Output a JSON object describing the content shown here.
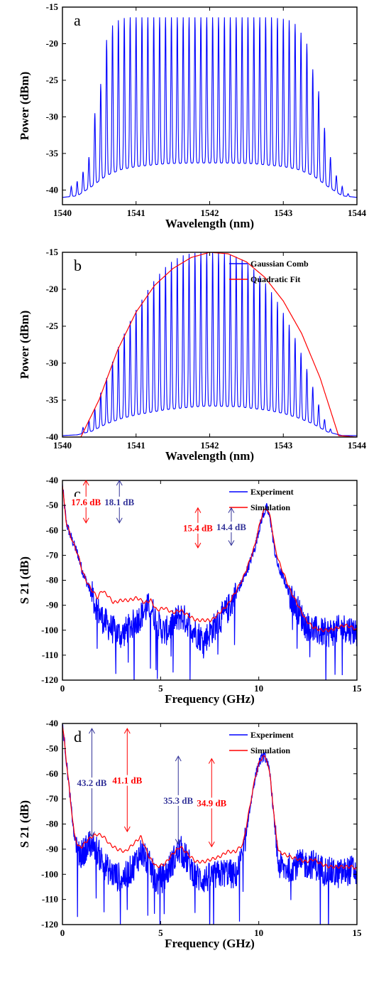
{
  "chart_data": [
    {
      "panel": "a",
      "type": "line",
      "xlabel": "Wavelength (nm)",
      "ylabel": "Power (dBm)",
      "xlim": [
        1540,
        1544
      ],
      "ylim": [
        -42,
        -15
      ],
      "xticks": [
        "1540",
        "1541",
        "1542",
        "1543",
        "1544"
      ],
      "yticks": [
        "-15",
        "-20",
        "-25",
        "-30",
        "-35",
        "-40"
      ],
      "legend": [],
      "series": [
        {
          "color": "#0000ff",
          "kind": "comb",
          "line_spacing_nm": 0.08,
          "peaks": {
            "x": [
              1540.12,
              1540.2,
              1540.28,
              1540.36,
              1540.44,
              1540.52,
              1540.6,
              1540.68,
              1540.76,
              1540.84,
              1540.92,
              1541.0,
              1541.08,
              1541.16,
              1541.24,
              1541.32,
              1541.4,
              1541.48,
              1541.56,
              1541.64,
              1541.72,
              1541.8,
              1541.88,
              1541.96,
              1542.04,
              1542.12,
              1542.2,
              1542.28,
              1542.36,
              1542.44,
              1542.52,
              1542.6,
              1542.68,
              1542.76,
              1542.84,
              1542.92,
              1543.0,
              1543.08,
              1543.16,
              1543.24,
              1543.32,
              1543.4,
              1543.48,
              1543.56,
              1543.64,
              1543.72,
              1543.8,
              1543.88
            ],
            "y": [
              -39.5,
              -38.8,
              -37.5,
              -35.5,
              -29.5,
              -25.5,
              -19.5,
              -17.5,
              -16.8,
              -16.5,
              -16.4,
              -16.4,
              -16.4,
              -16.4,
              -16.4,
              -16.4,
              -16.4,
              -16.4,
              -16.4,
              -16.4,
              -16.4,
              -16.4,
              -16.4,
              -16.4,
              -16.4,
              -16.4,
              -16.4,
              -16.4,
              -16.4,
              -16.4,
              -16.4,
              -16.4,
              -16.4,
              -16.4,
              -16.4,
              -16.5,
              -16.6,
              -16.8,
              -17.3,
              -18.5,
              -20.0,
              -23.5,
              -26.5,
              -31.5,
              -35.5,
              -38.0,
              -39.5,
              -40.5
            ]
          },
          "floor": {
            "x": [
              1540.0,
              1540.2,
              1540.4,
              1540.6,
              1540.8,
              1541.0,
              1541.4,
              1541.8,
              1542.2,
              1542.6,
              1543.0,
              1543.2,
              1543.4,
              1543.6,
              1543.8,
              1544.0
            ],
            "y": [
              -41.0,
              -40.8,
              -39.5,
              -38.0,
              -37.2,
              -36.8,
              -36.4,
              -36.3,
              -36.3,
              -36.4,
              -36.8,
              -37.2,
              -38.0,
              -39.5,
              -40.8,
              -41.0
            ]
          }
        }
      ],
      "annotations": []
    },
    {
      "panel": "b",
      "type": "line",
      "xlabel": "Wavelength (nm)",
      "ylabel": "Power (dBm)",
      "xlim": [
        1540,
        1544
      ],
      "ylim": [
        -40,
        -15
      ],
      "xticks": [
        "1540",
        "1541",
        "1542",
        "1543",
        "1544"
      ],
      "yticks": [
        "-15",
        "-20",
        "-25",
        "-30",
        "-35",
        "-40"
      ],
      "legend": [
        {
          "label": "Gaussian Comb",
          "color": "#0000ff"
        },
        {
          "label": "Quadratic Fit",
          "color": "#ff0000"
        }
      ],
      "series": [
        {
          "name": "Gaussian Comb",
          "color": "#0000ff",
          "kind": "comb",
          "line_spacing_nm": 0.08,
          "peaks": {
            "x": [
              1540.2,
              1540.28,
              1540.36,
              1540.44,
              1540.52,
              1540.6,
              1540.68,
              1540.76,
              1540.84,
              1540.92,
              1541.0,
              1541.08,
              1541.16,
              1541.24,
              1541.32,
              1541.4,
              1541.48,
              1541.56,
              1541.64,
              1541.72,
              1541.8,
              1541.88,
              1541.96,
              1542.04,
              1542.12,
              1542.2,
              1542.28,
              1542.36,
              1542.44,
              1542.52,
              1542.6,
              1542.68,
              1542.76,
              1542.84,
              1542.92,
              1543.0,
              1543.08,
              1543.16,
              1543.24,
              1543.32,
              1543.4,
              1543.48,
              1543.56,
              1543.64,
              1543.72
            ],
            "y": [
              -39.7,
              -38.7,
              -37.7,
              -36.2,
              -34.0,
              -32.0,
              -29.8,
              -27.8,
              -26.0,
              -24.3,
              -22.8,
              -21.4,
              -20.1,
              -18.9,
              -17.9,
              -17.0,
              -16.3,
              -15.8,
              -15.4,
              -15.2,
              -15.1,
              -15.0,
              -15.0,
              -15.0,
              -15.0,
              -15.1,
              -15.3,
              -15.6,
              -16.0,
              -16.6,
              -17.3,
              -18.2,
              -19.2,
              -20.4,
              -21.7,
              -23.2,
              -24.8,
              -26.6,
              -28.6,
              -30.8,
              -33.2,
              -35.6,
              -37.6,
              -38.9,
              -39.7
            ]
          },
          "floor": {
            "x": [
              1540.0,
              1540.2,
              1540.4,
              1540.6,
              1540.8,
              1541.0,
              1541.4,
              1541.8,
              1542.0,
              1542.4,
              1542.8,
              1543.0,
              1543.2,
              1543.4,
              1543.6,
              1543.8,
              1544.0
            ],
            "y": [
              -39.8,
              -39.7,
              -39.2,
              -38.2,
              -37.5,
              -37.0,
              -36.3,
              -35.9,
              -35.8,
              -35.9,
              -36.4,
              -36.8,
              -37.4,
              -38.2,
              -39.3,
              -39.8,
              -39.8
            ]
          }
        },
        {
          "name": "Quadratic Fit",
          "color": "#ff0000",
          "kind": "line",
          "x": [
            1540.0,
            1540.25,
            1540.5,
            1540.75,
            1541.0,
            1541.25,
            1541.5,
            1541.75,
            1542.0,
            1542.25,
            1542.5,
            1542.75,
            1543.0,
            1543.25,
            1543.5,
            1543.75,
            1544.0
          ],
          "y": [
            -40.0,
            -40.0,
            -34.9,
            -28.2,
            -23.1,
            -19.5,
            -17.2,
            -15.7,
            -15.0,
            -15.2,
            -16.3,
            -18.4,
            -21.6,
            -26.0,
            -32.0,
            -39.8,
            -40.0
          ]
        }
      ],
      "annotations": []
    },
    {
      "panel": "c",
      "type": "line",
      "xlabel": "Frequency (GHz)",
      "ylabel": "S 21 (dB)",
      "xlim": [
        0,
        15
      ],
      "ylim": [
        -120,
        -40
      ],
      "xticks": [
        "0",
        "5",
        "10",
        "15"
      ],
      "yticks": [
        "-40",
        "-50",
        "-60",
        "-70",
        "-80",
        "-90",
        "-100",
        "-110",
        "-120"
      ],
      "legend": [
        {
          "label": "Experiment",
          "color": "#0000ff"
        },
        {
          "label": "Simulation",
          "color": "#ff0000"
        }
      ],
      "series": [
        {
          "name": "Experiment",
          "color": "#0000ff",
          "kind": "noisy",
          "x": [
            0.0,
            0.1,
            0.2,
            0.4,
            0.6,
            0.8,
            1.0,
            1.2,
            1.5,
            1.8,
            2.0,
            2.3,
            2.6,
            3.0,
            3.4,
            3.8,
            4.2,
            4.5,
            4.8,
            5.2,
            5.6,
            6.0,
            6.4,
            6.8,
            7.2,
            7.6,
            8.0,
            8.4,
            8.8,
            9.2,
            9.5,
            9.8,
            10.0,
            10.2,
            10.4,
            10.6,
            10.8,
            11.0,
            11.3,
            11.6,
            12.0,
            12.4,
            12.8,
            13.2,
            13.6,
            14.0,
            14.4,
            14.8,
            15.0
          ],
          "y": [
            -42,
            -50,
            -57,
            -62,
            -66,
            -70,
            -76,
            -80,
            -86,
            -92,
            -95,
            -98,
            -100,
            -102,
            -99,
            -96,
            -92,
            -90,
            -97,
            -101,
            -98,
            -94,
            -97,
            -101,
            -104,
            -100,
            -96,
            -92,
            -86,
            -80,
            -74,
            -67,
            -60,
            -54,
            -51,
            -56,
            -68,
            -75,
            -80,
            -86,
            -92,
            -98,
            -100,
            -101,
            -101,
            -100,
            -99,
            -100,
            -101
          ]
        },
        {
          "name": "Simulation",
          "color": "#ff0000",
          "kind": "line",
          "x": [
            0.0,
            0.1,
            0.2,
            0.4,
            0.6,
            0.8,
            1.0,
            1.2,
            1.5,
            1.8,
            2.0,
            2.3,
            2.6,
            3.0,
            3.4,
            3.8,
            4.2,
            4.5,
            4.8,
            5.2,
            5.6,
            6.0,
            6.4,
            6.8,
            7.2,
            7.6,
            8.0,
            8.4,
            8.8,
            9.2,
            9.5,
            9.8,
            10.0,
            10.2,
            10.4,
            10.6,
            10.8,
            11.0,
            11.3,
            11.6,
            12.0,
            12.4,
            12.8,
            13.2,
            13.6,
            14.0,
            14.4,
            14.8,
            15.0
          ],
          "y": [
            -42,
            -50,
            -57,
            -62,
            -66,
            -70,
            -76,
            -80,
            -84,
            -87,
            -84,
            -86,
            -89,
            -88,
            -88,
            -87,
            -89,
            -88,
            -92,
            -91,
            -93,
            -92,
            -94,
            -96,
            -96,
            -96,
            -93,
            -90,
            -85,
            -79,
            -73,
            -66,
            -59,
            -53,
            -51,
            -55,
            -66,
            -72,
            -78,
            -84,
            -90,
            -96,
            -99,
            -100,
            -100,
            -99,
            -98,
            -99,
            -100
          ]
        }
      ],
      "annotations": [
        {
          "text": "17.6 dB",
          "color": "#ff0000",
          "x": 1.2,
          "y_top": -40,
          "y_bottom": -57
        },
        {
          "text": "18.1 dB",
          "color": "#333399",
          "x": 2.9,
          "y_top": -40,
          "y_bottom": -57
        },
        {
          "text": "15.4 dB",
          "color": "#ff0000",
          "x": 6.9,
          "y_top": -51,
          "y_bottom": -67
        },
        {
          "text": "14.4 dB",
          "color": "#333399",
          "x": 8.6,
          "y_top": -51,
          "y_bottom": -66
        }
      ]
    },
    {
      "panel": "d",
      "type": "line",
      "xlabel": "Frequency (GHz)",
      "ylabel": "S 21 (dB)",
      "xlim": [
        0,
        15
      ],
      "ylim": [
        -120,
        -40
      ],
      "xticks": [
        "0",
        "5",
        "10",
        "15"
      ],
      "yticks": [
        "-40",
        "-50",
        "-60",
        "-70",
        "-80",
        "-90",
        "-100",
        "-110",
        "-120"
      ],
      "legend": [
        {
          "label": "Experiment",
          "color": "#0000ff"
        },
        {
          "label": "Simulation",
          "color": "#ff0000"
        }
      ],
      "series": [
        {
          "name": "Experiment",
          "color": "#0000ff",
          "kind": "noisy",
          "x": [
            0.0,
            0.1,
            0.2,
            0.4,
            0.6,
            0.8,
            1.0,
            1.2,
            1.5,
            1.8,
            2.1,
            2.4,
            2.8,
            3.2,
            3.6,
            4.0,
            4.4,
            4.8,
            5.2,
            5.6,
            6.0,
            6.4,
            6.8,
            7.2,
            7.6,
            8.0,
            8.4,
            8.8,
            9.2,
            9.5,
            9.8,
            10.0,
            10.2,
            10.4,
            10.6,
            10.8,
            11.0,
            11.3,
            11.6,
            12.0,
            12.4,
            12.8,
            13.2,
            13.6,
            14.0,
            14.4,
            14.8,
            15.0
          ],
          "y": [
            -41,
            -47,
            -55,
            -70,
            -85,
            -92,
            -92,
            -89,
            -88,
            -91,
            -96,
            -99,
            -101,
            -101,
            -97,
            -91,
            -96,
            -103,
            -101,
            -95,
            -90,
            -95,
            -101,
            -102,
            -101,
            -100,
            -99,
            -101,
            -92,
            -76,
            -62,
            -56,
            -53,
            -54,
            -62,
            -80,
            -96,
            -98,
            -97,
            -96,
            -96,
            -96,
            -98,
            -99,
            -100,
            -99,
            -98,
            -100
          ]
        },
        {
          "name": "Simulation",
          "color": "#ff0000",
          "kind": "line",
          "x": [
            0.0,
            0.1,
            0.2,
            0.4,
            0.6,
            0.8,
            1.0,
            1.2,
            1.5,
            1.8,
            2.1,
            2.4,
            2.8,
            3.2,
            3.6,
            4.0,
            4.4,
            4.8,
            5.2,
            5.6,
            6.0,
            6.4,
            6.8,
            7.2,
            7.6,
            8.0,
            8.4,
            8.8,
            9.2,
            9.5,
            9.8,
            10.0,
            10.2,
            10.4,
            10.6,
            10.8,
            11.0,
            11.3,
            11.6,
            12.0,
            12.4,
            12.8,
            13.2,
            13.6,
            14.0,
            14.4,
            14.8,
            15.0
          ],
          "y": [
            -41,
            -47,
            -55,
            -70,
            -84,
            -89,
            -89,
            -87,
            -85,
            -84,
            -85,
            -88,
            -90,
            -91,
            -88,
            -85,
            -93,
            -97,
            -96,
            -92,
            -89,
            -92,
            -95,
            -95,
            -94,
            -93,
            -91,
            -91,
            -88,
            -75,
            -62,
            -56,
            -53,
            -54,
            -62,
            -79,
            -91,
            -92,
            -93,
            -94,
            -95,
            -94,
            -96,
            -97,
            -97,
            -97,
            -97,
            -98
          ]
        }
      ],
      "annotations": [
        {
          "text": "43.2 dB",
          "color": "#333399",
          "x": 1.5,
          "y_top": -42,
          "y_bottom": -85
        },
        {
          "text": "41.1 dB",
          "color": "#ff0000",
          "x": 3.3,
          "y_top": -42,
          "y_bottom": -83
        },
        {
          "text": "35.3 dB",
          "color": "#333399",
          "x": 5.9,
          "y_top": -53,
          "y_bottom": -88
        },
        {
          "text": "34.9 dB",
          "color": "#ff0000",
          "x": 7.6,
          "y_top": -54,
          "y_bottom": -89
        }
      ]
    }
  ]
}
